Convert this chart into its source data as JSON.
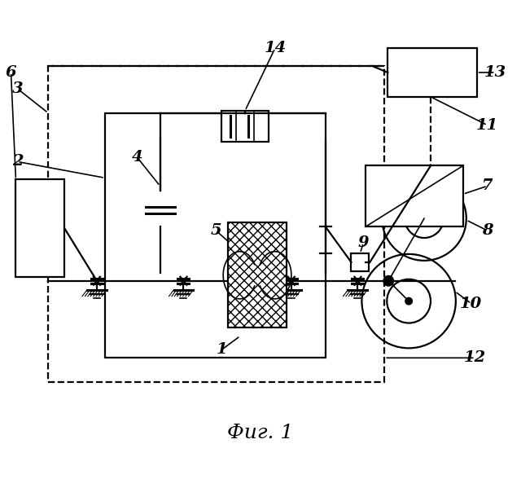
{
  "title": "Фиг. 1",
  "bg": "#ffffff",
  "fig_w": 6.4,
  "fig_h": 5.88,
  "dpi": 100
}
